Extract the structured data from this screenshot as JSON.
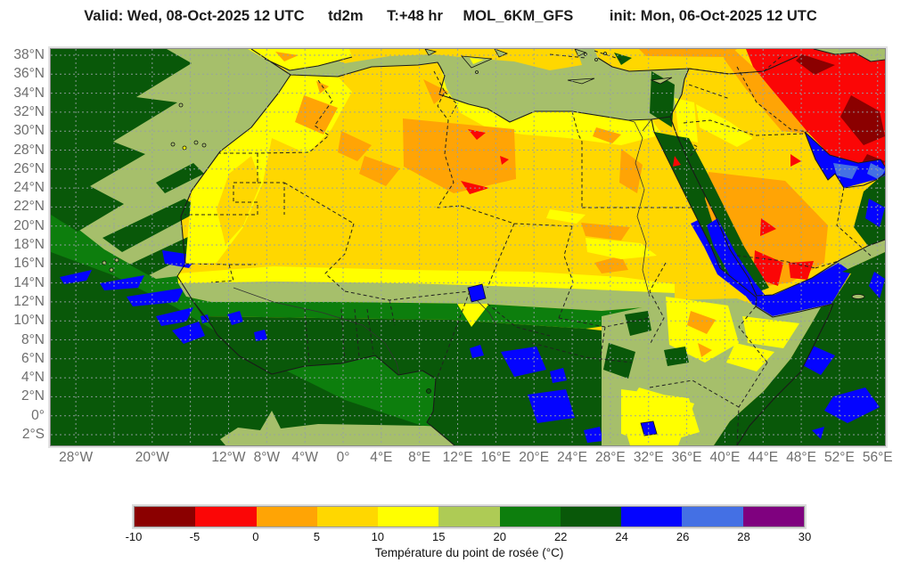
{
  "header": {
    "valid": "Valid: Wed, 08-Oct-2025  12 UTC",
    "variable": "td2m",
    "step": "T:+48 hr",
    "model": "MOL_6KM_GFS",
    "init": "init: Mon, 06-Oct-2025  12 UTC"
  },
  "map": {
    "lat_ticks": [
      {
        "value": 38,
        "label": "38°N"
      },
      {
        "value": 36,
        "label": "36°N"
      },
      {
        "value": 34,
        "label": "34°N"
      },
      {
        "value": 32,
        "label": "32°N"
      },
      {
        "value": 30,
        "label": "30°N"
      },
      {
        "value": 28,
        "label": "28°N"
      },
      {
        "value": 26,
        "label": "26°N"
      },
      {
        "value": 24,
        "label": "24°N"
      },
      {
        "value": 22,
        "label": "22°N"
      },
      {
        "value": 20,
        "label": "20°N"
      },
      {
        "value": 18,
        "label": "18°N"
      },
      {
        "value": 16,
        "label": "16°N"
      },
      {
        "value": 14,
        "label": "14°N"
      },
      {
        "value": 12,
        "label": "12°N"
      },
      {
        "value": 10,
        "label": "10°N"
      },
      {
        "value": 8,
        "label": "8°N"
      },
      {
        "value": 6,
        "label": "6°N"
      },
      {
        "value": 4,
        "label": "4°N"
      },
      {
        "value": 2,
        "label": "2°N"
      },
      {
        "value": 0,
        "label": "0°"
      },
      {
        "value": -2,
        "label": "2°S"
      }
    ],
    "lon_ticks": [
      {
        "value": -28,
        "label": "28°W"
      },
      {
        "value": -20,
        "label": "20°W"
      },
      {
        "value": -12,
        "label": "12°W"
      },
      {
        "value": -8,
        "label": "8°W"
      },
      {
        "value": -4,
        "label": "4°W"
      },
      {
        "value": 0,
        "label": "0°"
      },
      {
        "value": 4,
        "label": "4°E"
      },
      {
        "value": 8,
        "label": "8°E"
      },
      {
        "value": 12,
        "label": "12°E"
      },
      {
        "value": 16,
        "label": "16°E"
      },
      {
        "value": 20,
        "label": "20°E"
      },
      {
        "value": 24,
        "label": "24°E"
      },
      {
        "value": 28,
        "label": "28°E"
      },
      {
        "value": 32,
        "label": "32°E"
      },
      {
        "value": 36,
        "label": "36°E"
      },
      {
        "value": 40,
        "label": "40°E"
      },
      {
        "value": 44,
        "label": "44°E"
      },
      {
        "value": 48,
        "label": "48°E"
      },
      {
        "value": 52,
        "label": "52°E"
      },
      {
        "value": 56,
        "label": "56°E"
      }
    ],
    "grid": {
      "lat_step_deg": 2,
      "lon_step_deg": 4,
      "lat_range": [
        38,
        -2
      ],
      "lon_range": [
        -28,
        56
      ]
    }
  },
  "colorbar": {
    "caption": "Température du point de rosée (°C)",
    "tick_labels": [
      "-10",
      "-5",
      "0",
      "5",
      "10",
      "15",
      "20",
      "22",
      "24",
      "26",
      "28",
      "30"
    ],
    "colors": [
      "#8B0000",
      "#FB0606",
      "#FFA405",
      "#FFD700",
      "#FFFF00",
      "#AECB55",
      "#0D7E0D",
      "#095809",
      "#0404FF",
      "#4470E4",
      "#7F017F"
    ]
  },
  "palette": {
    "darkred": "#8B0000",
    "red": "#FB0606",
    "orange": "#FFA405",
    "gold": "#FFD700",
    "yellow": "#FFFF00",
    "olivesea": "#A6BF6B",
    "green": "#0D7E0D",
    "darkgreen": "#095809",
    "blue": "#0404FF",
    "lightblue": "#4470E4",
    "purple": "#7F017F",
    "grid": "#97A0A6",
    "coast": "#1A1A1A",
    "label": "#6E6E6E",
    "title": "#1C1C1C",
    "frame": "#8A8A8A"
  }
}
